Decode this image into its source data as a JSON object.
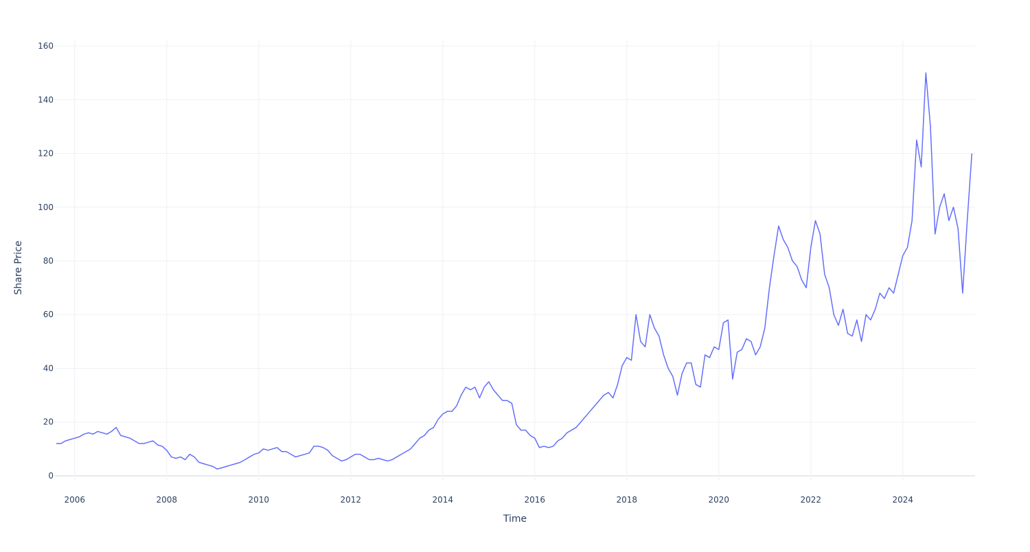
{
  "chart_data": {
    "type": "line",
    "x_label": "Time",
    "y_label": "Share Price",
    "x": [
      2005.6,
      2005.7,
      2005.8,
      2005.9,
      2006.0,
      2006.1,
      2006.2,
      2006.3,
      2006.4,
      2006.5,
      2006.6,
      2006.7,
      2006.8,
      2006.9,
      2007.0,
      2007.1,
      2007.2,
      2007.3,
      2007.4,
      2007.5,
      2007.6,
      2007.7,
      2007.8,
      2007.9,
      2008.0,
      2008.1,
      2008.2,
      2008.3,
      2008.4,
      2008.5,
      2008.6,
      2008.7,
      2008.8,
      2008.9,
      2009.0,
      2009.1,
      2009.2,
      2009.3,
      2009.4,
      2009.5,
      2009.6,
      2009.7,
      2009.8,
      2009.9,
      2010.0,
      2010.1,
      2010.2,
      2010.3,
      2010.4,
      2010.5,
      2010.6,
      2010.7,
      2010.8,
      2010.9,
      2011.0,
      2011.1,
      2011.2,
      2011.3,
      2011.4,
      2011.5,
      2011.6,
      2011.7,
      2011.8,
      2011.9,
      2012.0,
      2012.1,
      2012.2,
      2012.3,
      2012.4,
      2012.5,
      2012.6,
      2012.7,
      2012.8,
      2012.9,
      2013.0,
      2013.1,
      2013.2,
      2013.3,
      2013.4,
      2013.5,
      2013.6,
      2013.7,
      2013.8,
      2013.9,
      2014.0,
      2014.1,
      2014.2,
      2014.3,
      2014.4,
      2014.5,
      2014.6,
      2014.7,
      2014.8,
      2014.9,
      2015.0,
      2015.1,
      2015.2,
      2015.3,
      2015.4,
      2015.5,
      2015.6,
      2015.7,
      2015.8,
      2015.9,
      2016.0,
      2016.1,
      2016.2,
      2016.3,
      2016.4,
      2016.5,
      2016.6,
      2016.7,
      2016.8,
      2016.9,
      2017.0,
      2017.1,
      2017.2,
      2017.3,
      2017.4,
      2017.5,
      2017.6,
      2017.7,
      2017.8,
      2017.9,
      2018.0,
      2018.1,
      2018.2,
      2018.3,
      2018.4,
      2018.5,
      2018.6,
      2018.7,
      2018.8,
      2018.9,
      2019.0,
      2019.1,
      2019.2,
      2019.3,
      2019.4,
      2019.5,
      2019.6,
      2019.7,
      2019.8,
      2019.9,
      2020.0,
      2020.1,
      2020.2,
      2020.3,
      2020.4,
      2020.5,
      2020.6,
      2020.7,
      2020.8,
      2020.9,
      2021.0,
      2021.1,
      2021.2,
      2021.3,
      2021.4,
      2021.5,
      2021.6,
      2021.7,
      2021.8,
      2021.9,
      2022.0,
      2022.1,
      2022.2,
      2022.3,
      2022.4,
      2022.5,
      2022.6,
      2022.7,
      2022.8,
      2022.9,
      2023.0,
      2023.1,
      2023.2,
      2023.3,
      2023.4,
      2023.5,
      2023.6,
      2023.7,
      2023.8,
      2023.9,
      2024.0,
      2024.1,
      2024.2,
      2024.3,
      2024.4,
      2024.5,
      2024.6,
      2024.7,
      2024.8,
      2024.9,
      2025.0,
      2025.1,
      2025.2,
      2025.3,
      2025.4,
      2025.5
    ],
    "series": [
      {
        "color": "#636efa",
        "values": [
          12,
          12,
          13,
          13.5,
          14,
          14.5,
          15.5,
          16,
          15.5,
          16.5,
          16,
          15.5,
          16.5,
          18,
          15,
          14.5,
          14,
          13,
          12,
          12,
          12.5,
          13,
          11.5,
          11,
          9.5,
          7,
          6.5,
          7,
          6,
          8,
          7,
          5,
          4.5,
          4,
          3.5,
          2.5,
          3,
          3.5,
          4,
          4.5,
          5,
          6,
          7,
          8,
          8.5,
          10,
          9.5,
          10,
          10.5,
          9,
          9,
          8,
          7,
          7.5,
          8,
          8.5,
          11,
          11,
          10.5,
          9.5,
          7.5,
          6.5,
          5.5,
          6,
          7,
          8,
          8,
          7,
          6,
          6,
          6.5,
          6,
          5.5,
          6,
          7,
          8,
          9,
          10,
          12,
          14,
          15,
          17,
          18,
          21,
          23,
          24,
          24,
          26,
          30,
          33,
          32,
          33,
          29,
          33,
          35,
          32,
          30,
          28,
          28,
          27,
          19,
          17,
          17,
          15,
          14,
          10.5,
          11,
          10.5,
          11,
          13,
          14,
          16,
          17,
          18,
          20,
          22,
          24,
          26,
          28,
          30,
          31,
          29,
          34,
          41,
          44,
          43,
          60,
          50,
          48,
          60,
          55,
          52,
          45,
          40,
          37,
          30,
          38,
          42,
          42,
          34,
          33,
          45,
          44,
          48,
          47,
          57,
          58,
          36,
          46,
          47,
          51,
          50,
          45,
          48,
          55,
          70,
          82,
          93,
          88,
          85,
          80,
          78,
          73,
          70,
          85,
          95,
          90,
          75,
          70,
          60,
          56,
          62,
          53,
          52,
          58,
          50,
          60,
          58,
          62,
          68,
          66,
          70,
          68,
          75,
          82,
          85,
          95,
          125,
          115,
          150,
          130,
          90,
          100,
          105,
          95,
          100,
          92,
          68,
          95,
          120
        ]
      }
    ],
    "xlim": [
      2005.57,
      2025.57
    ],
    "xticks": [
      2006,
      2008,
      2010,
      2012,
      2014,
      2016,
      2018,
      2020,
      2022,
      2024
    ],
    "ylim": [
      -1.8,
      161.8
    ],
    "yticks": [
      0,
      20,
      40,
      60,
      80,
      100,
      120,
      140,
      160
    ],
    "grid": true
  }
}
